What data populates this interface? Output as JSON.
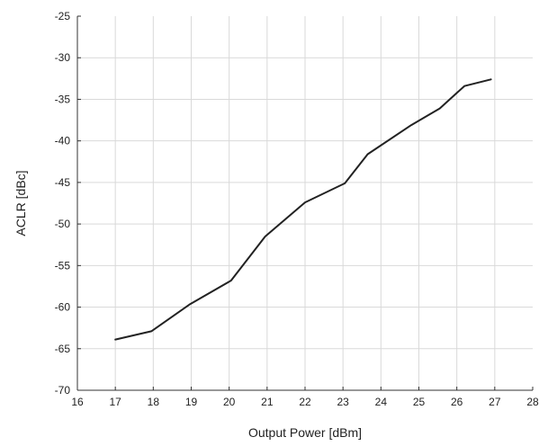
{
  "chart_data": {
    "type": "line",
    "title": "",
    "xlabel": "Output Power [dBm]",
    "ylabel": "ACLR [dBc]",
    "xlim": [
      16,
      28
    ],
    "ylim": [
      -70,
      -25
    ],
    "x_ticks": [
      16,
      17,
      18,
      19,
      20,
      21,
      22,
      23,
      24,
      25,
      26,
      27,
      28
    ],
    "y_ticks": [
      -25,
      -30,
      -35,
      -40,
      -45,
      -50,
      -55,
      -60,
      -65,
      -70
    ],
    "grid": true,
    "series": [
      {
        "x": [
          17.0,
          17.95,
          18.95,
          20.05,
          20.95,
          22.0,
          23.05,
          23.65,
          24.8,
          25.55,
          26.2,
          26.9
        ],
        "y": [
          -63.9,
          -62.9,
          -59.7,
          -56.8,
          -51.5,
          -47.4,
          -45.1,
          -41.6,
          -38.1,
          -36.1,
          -33.4,
          -32.6
        ]
      }
    ],
    "colors": {
      "line": "#222222",
      "grid": "#d9d9d9",
      "axis": "#333333",
      "text": "#222222"
    }
  }
}
